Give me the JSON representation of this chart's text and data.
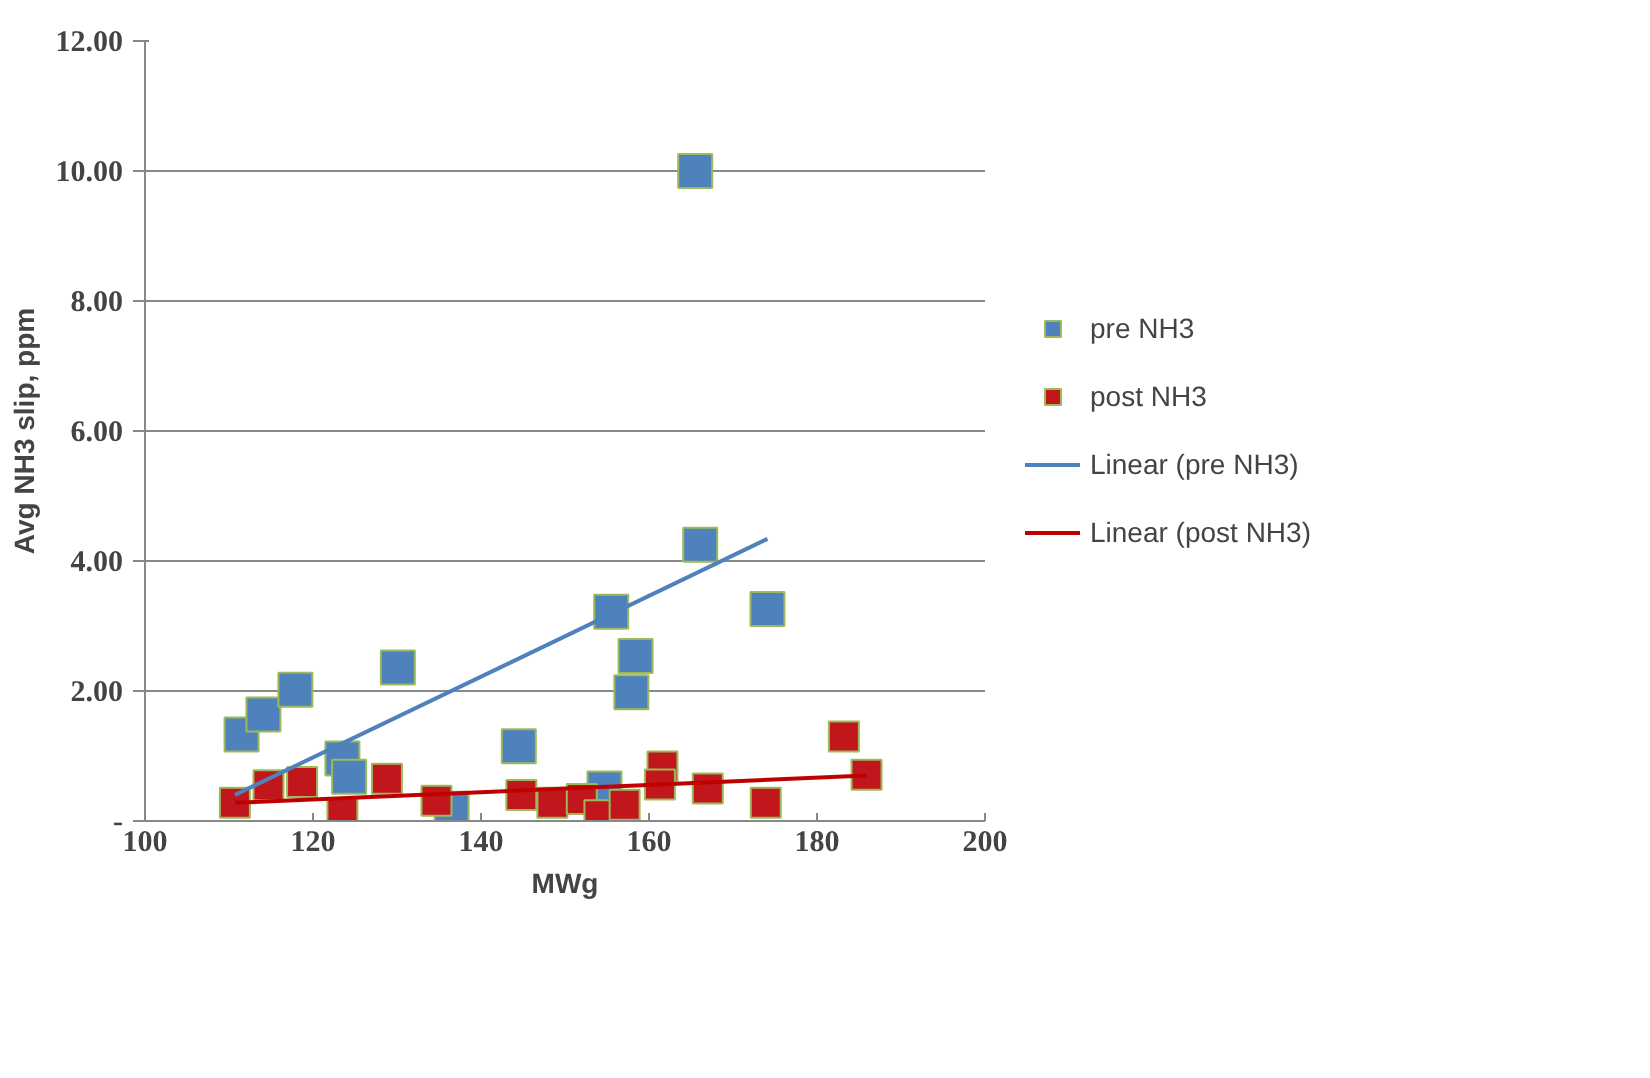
{
  "chart_data": {
    "type": "scatter",
    "xlabel": "MWg",
    "ylabel": "Avg NH3 slip, ppm",
    "xlim": [
      100,
      200
    ],
    "xticks": [
      100,
      120,
      140,
      160,
      180,
      200
    ],
    "ylim": [
      0,
      12
    ],
    "yticks": [
      {
        "value": 0,
        "label": "-"
      },
      {
        "value": 2,
        "label": "2.00"
      },
      {
        "value": 4,
        "label": "4.00"
      },
      {
        "value": 6,
        "label": "6.00"
      },
      {
        "value": 8,
        "label": "8.00"
      },
      {
        "value": 10,
        "label": "10.00"
      },
      {
        "value": 12,
        "label": "12.00"
      }
    ],
    "grid": "y",
    "legend": "right",
    "marker": "square",
    "series": [
      {
        "name": "pre NH3",
        "color": "#4f81bd",
        "x": [
          111.5,
          114.1,
          117.9,
          123.5,
          124.3,
          130.1,
          136.5,
          144.5,
          154.7,
          155.5,
          157.9,
          158.4,
          165.5,
          166.1,
          174.1
        ],
        "values": [
          1.33,
          1.64,
          2.02,
          0.96,
          0.68,
          2.36,
          0.19,
          1.15,
          0.5,
          3.22,
          1.98,
          2.54,
          10.0,
          4.25,
          3.26
        ]
      },
      {
        "name": "post NH3",
        "color": "#c0161c",
        "x": [
          110.7,
          114.7,
          118.7,
          123.5,
          128.8,
          134.7,
          144.8,
          148.5,
          152.0,
          154.1,
          157.1,
          161.6,
          161.3,
          167.0,
          173.9,
          183.2,
          185.9
        ],
        "values": [
          0.28,
          0.55,
          0.6,
          0.12,
          0.65,
          0.31,
          0.4,
          0.28,
          0.34,
          0.09,
          0.25,
          0.84,
          0.56,
          0.5,
          0.28,
          1.3,
          0.71
        ]
      },
      {
        "name": "Linear (pre NH3)",
        "color": "#4f81bd",
        "type": "line",
        "marker": "none",
        "x": [
          110.7,
          174.1
        ],
        "values": [
          0.4,
          4.34
        ]
      },
      {
        "name": "Linear (post NH3)",
        "color": "#c00000",
        "type": "line",
        "marker": "none",
        "x": [
          110.7,
          185.9
        ],
        "values": [
          0.28,
          0.7
        ]
      }
    ]
  }
}
